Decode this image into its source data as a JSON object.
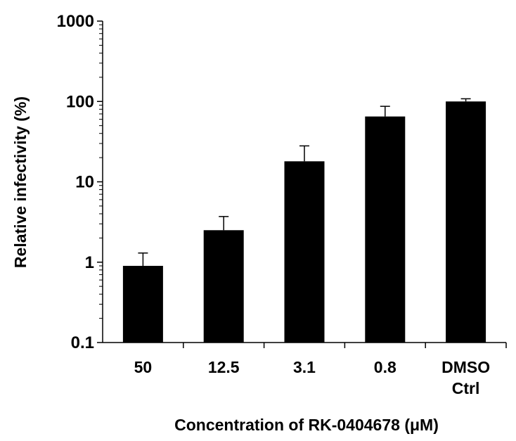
{
  "chart_data": {
    "type": "bar",
    "title": "",
    "xlabel": "Concentration of RK-0404678 (μM)",
    "ylabel": "Relative infectivity (%)",
    "y_scale": "log",
    "ylim": [
      0.1,
      1000
    ],
    "y_ticks": [
      0.1,
      1,
      10,
      100,
      1000
    ],
    "y_tick_labels": [
      "0.1",
      "1",
      "10",
      "100",
      "1000"
    ],
    "categories": [
      "50",
      "12.5",
      "3.1",
      "0.8",
      "DMSO Ctrl"
    ],
    "category_lines": [
      [
        "50"
      ],
      [
        "12.5"
      ],
      [
        "3.1"
      ],
      [
        "0.8"
      ],
      [
        "DMSO",
        "Ctrl"
      ]
    ],
    "values": [
      0.9,
      2.5,
      18,
      65,
      100
    ],
    "error_upper": [
      1.3,
      3.7,
      28,
      87,
      108
    ],
    "grid": false,
    "legend": "none",
    "bar_color": "#000000"
  }
}
